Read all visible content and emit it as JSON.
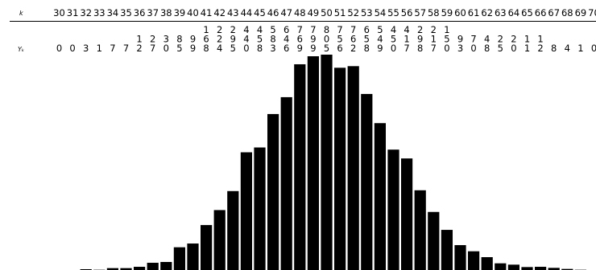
{
  "chart_data": {
    "type": "bar",
    "title": "",
    "xlabel": "",
    "ylabel": "",
    "row_labels": {
      "k": "k",
      "y": "Yₖ"
    },
    "categories": [
      "30",
      "31",
      "32",
      "33",
      "34",
      "35",
      "36",
      "37",
      "38",
      "39",
      "40",
      "41",
      "42",
      "43",
      "44",
      "45",
      "46",
      "47",
      "48",
      "49",
      "50",
      "51",
      "52",
      "53",
      "54",
      "55",
      "56",
      "57",
      "58",
      "59",
      "60",
      "61",
      "62",
      "63",
      "64",
      "65",
      "66",
      "67",
      "68",
      "69",
      "70"
    ],
    "values": [
      0,
      0,
      3,
      1,
      7,
      7,
      12,
      27,
      30,
      85,
      99,
      168,
      224,
      295,
      440,
      458,
      583,
      646,
      769,
      799,
      805,
      756,
      762,
      658,
      549,
      450,
      417,
      298,
      217,
      150,
      93,
      70,
      48,
      25,
      20,
      11,
      12,
      8,
      4,
      1,
      0
    ],
    "bar_color": "#000000"
  }
}
